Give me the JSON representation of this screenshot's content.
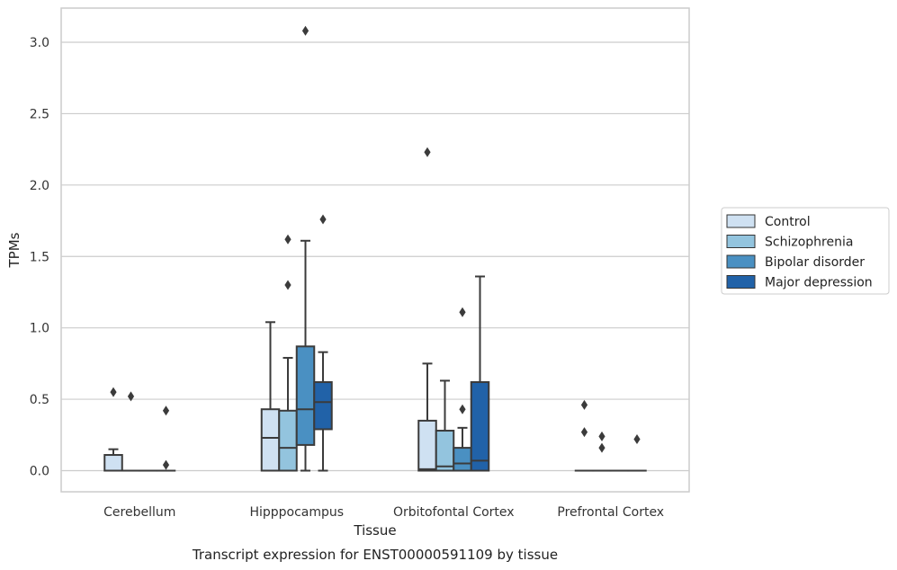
{
  "chart_data": {
    "type": "box",
    "title": "",
    "caption": "Transcript expression for ENST00000591109 by tissue",
    "xlabel": "Tissue",
    "ylabel": "TPMs",
    "ylim": [
      -0.15,
      3.25
    ],
    "yticks": [
      "0.0",
      "0.5",
      "1.0",
      "1.5",
      "2.0",
      "2.5",
      "3.0"
    ],
    "grid": true,
    "legend_position": "right",
    "categories": [
      "Cerebellum",
      "Hipppocampus",
      "Orbitofontal Cortex",
      "Prefrontal Cortex"
    ],
    "series": [
      {
        "name": "Control",
        "color": "#cfe1f2",
        "boxes": [
          {
            "q1": 0.0,
            "median": 0.0,
            "q3": 0.11,
            "whisker_low": 0.0,
            "whisker_high": 0.15,
            "outliers": [
              0.55
            ]
          },
          {
            "q1": 0.0,
            "median": 0.23,
            "q3": 0.43,
            "whisker_low": 0.0,
            "whisker_high": 1.04,
            "outliers": []
          },
          {
            "q1": 0.0,
            "median": 0.01,
            "q3": 0.35,
            "whisker_low": 0.0,
            "whisker_high": 0.75,
            "outliers": [
              2.23
            ]
          },
          {
            "q1": 0.0,
            "median": 0.0,
            "q3": 0.0,
            "whisker_low": 0.0,
            "whisker_high": 0.0,
            "outliers": [
              0.46,
              0.27
            ]
          }
        ]
      },
      {
        "name": "Schizophrenia",
        "color": "#93c4de",
        "boxes": [
          {
            "q1": 0.0,
            "median": 0.0,
            "q3": 0.0,
            "whisker_low": 0.0,
            "whisker_high": 0.0,
            "outliers": [
              0.52
            ]
          },
          {
            "q1": 0.0,
            "median": 0.16,
            "q3": 0.42,
            "whisker_low": 0.0,
            "whisker_high": 0.79,
            "outliers": [
              1.62,
              1.3
            ]
          },
          {
            "q1": 0.0,
            "median": 0.03,
            "q3": 0.28,
            "whisker_low": 0.0,
            "whisker_high": 0.63,
            "outliers": []
          },
          {
            "q1": 0.0,
            "median": 0.0,
            "q3": 0.0,
            "whisker_low": 0.0,
            "whisker_high": 0.0,
            "outliers": [
              0.24,
              0.16
            ]
          }
        ]
      },
      {
        "name": "Bipolar disorder",
        "color": "#4a90c2",
        "boxes": [
          {
            "q1": 0.0,
            "median": 0.0,
            "q3": 0.0,
            "whisker_low": 0.0,
            "whisker_high": 0.0,
            "outliers": []
          },
          {
            "q1": 0.18,
            "median": 0.43,
            "q3": 0.87,
            "whisker_low": 0.0,
            "whisker_high": 1.61,
            "outliers": [
              3.08
            ]
          },
          {
            "q1": 0.0,
            "median": 0.05,
            "q3": 0.16,
            "whisker_low": 0.0,
            "whisker_high": 0.3,
            "outliers": [
              1.11,
              0.43
            ]
          },
          {
            "q1": 0.0,
            "median": 0.0,
            "q3": 0.0,
            "whisker_low": 0.0,
            "whisker_high": 0.0,
            "outliers": []
          }
        ]
      },
      {
        "name": "Major depression",
        "color": "#2162a8",
        "boxes": [
          {
            "q1": 0.0,
            "median": 0.0,
            "q3": 0.0,
            "whisker_low": 0.0,
            "whisker_high": 0.0,
            "outliers": [
              0.42,
              0.04
            ]
          },
          {
            "q1": 0.29,
            "median": 0.48,
            "q3": 0.62,
            "whisker_low": 0.0,
            "whisker_high": 0.83,
            "outliers": [
              1.76
            ]
          },
          {
            "q1": 0.0,
            "median": 0.07,
            "q3": 0.62,
            "whisker_low": 0.0,
            "whisker_high": 1.36,
            "outliers": []
          },
          {
            "q1": 0.0,
            "median": 0.0,
            "q3": 0.0,
            "whisker_low": 0.0,
            "whisker_high": 0.0,
            "outliers": [
              0.22
            ]
          }
        ]
      }
    ]
  }
}
